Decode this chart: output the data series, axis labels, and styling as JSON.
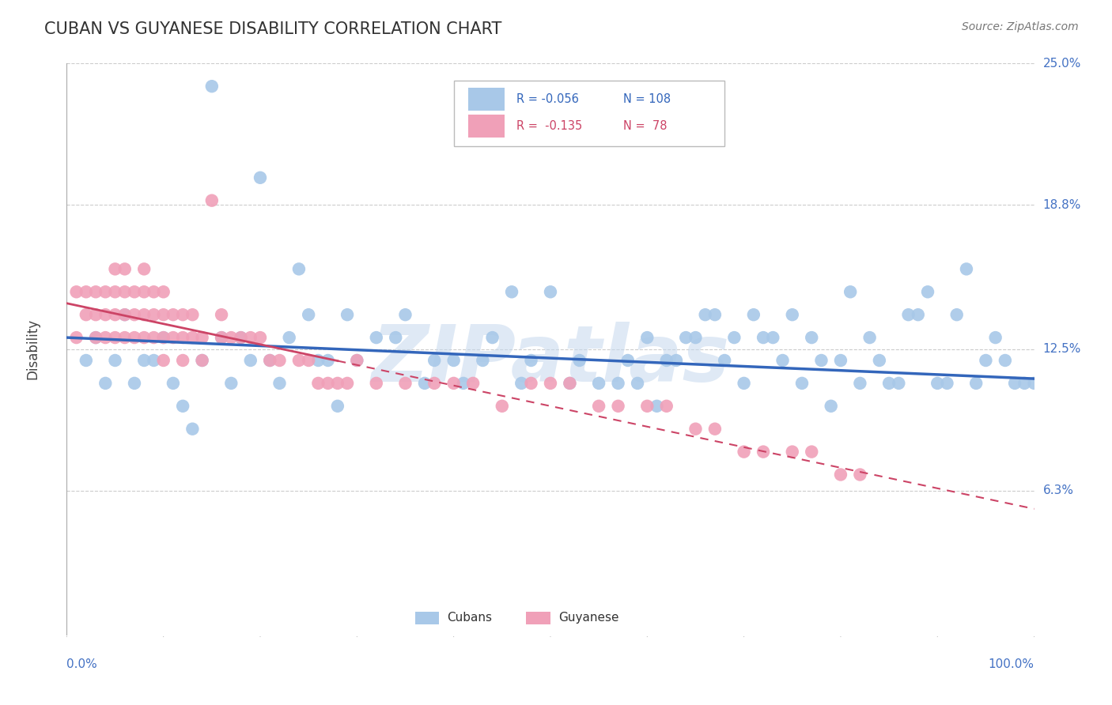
{
  "title": "CUBAN VS GUYANESE DISABILITY CORRELATION CHART",
  "source": "Source: ZipAtlas.com",
  "ylabel": "Disability",
  "watermark": "ZIPatlas",
  "legend_r_cuban": "-0.056",
  "legend_n_cuban": "108",
  "legend_r_guyanese": "-0.135",
  "legend_n_guyanese": "78",
  "cuban_color": "#A8C8E8",
  "guyanese_color": "#F0A0B8",
  "trend_cuban_color": "#3366BB",
  "trend_guyanese_color": "#CC4466",
  "background_color": "#FFFFFF",
  "xlim": [
    0,
    100
  ],
  "ylim": [
    0,
    25
  ],
  "ytick_vals": [
    6.3,
    12.5,
    18.8,
    25.0
  ],
  "ytick_labels": [
    "6.3%",
    "12.5%",
    "18.8%",
    "25.0%"
  ],
  "cuban_x": [
    2,
    3,
    4,
    5,
    6,
    7,
    8,
    9,
    10,
    11,
    12,
    13,
    14,
    15,
    16,
    17,
    18,
    19,
    20,
    21,
    22,
    23,
    24,
    25,
    26,
    27,
    28,
    29,
    30,
    32,
    34,
    35,
    37,
    38,
    40,
    41,
    43,
    44,
    46,
    47,
    48,
    50,
    52,
    53,
    55,
    57,
    58,
    59,
    60,
    61,
    62,
    63,
    64,
    65,
    66,
    67,
    68,
    69,
    70,
    71,
    72,
    73,
    74,
    75,
    76,
    77,
    78,
    79,
    80,
    81,
    82,
    83,
    84,
    85,
    86,
    87,
    88,
    89,
    90,
    91,
    92,
    93,
    94,
    95,
    96,
    97,
    98,
    99,
    100
  ],
  "cuban_y": [
    12,
    13,
    11,
    12,
    14,
    11,
    12,
    12,
    13,
    11,
    10,
    9,
    12,
    24,
    13,
    11,
    13,
    12,
    20,
    12,
    11,
    13,
    16,
    14,
    12,
    12,
    10,
    14,
    12,
    13,
    13,
    14,
    11,
    12,
    12,
    11,
    12,
    13,
    15,
    11,
    12,
    15,
    11,
    12,
    11,
    11,
    12,
    11,
    13,
    10,
    12,
    12,
    13,
    13,
    14,
    14,
    12,
    13,
    11,
    14,
    13,
    13,
    12,
    14,
    11,
    13,
    12,
    10,
    12,
    15,
    11,
    13,
    12,
    11,
    11,
    14,
    14,
    15,
    11,
    11,
    14,
    16,
    11,
    12,
    13,
    12,
    11,
    11,
    11
  ],
  "guyanese_x": [
    1,
    1,
    2,
    2,
    3,
    3,
    3,
    4,
    4,
    4,
    5,
    5,
    5,
    5,
    6,
    6,
    6,
    6,
    7,
    7,
    7,
    8,
    8,
    8,
    8,
    9,
    9,
    9,
    10,
    10,
    10,
    10,
    11,
    11,
    12,
    12,
    12,
    13,
    13,
    14,
    14,
    15,
    16,
    16,
    17,
    18,
    19,
    20,
    21,
    22,
    24,
    25,
    26,
    27,
    28,
    29,
    30,
    32,
    35,
    38,
    40,
    42,
    45,
    48,
    50,
    52,
    55,
    57,
    60,
    62,
    65,
    67,
    70,
    72,
    75,
    77,
    80,
    82
  ],
  "guyanese_y": [
    13,
    15,
    14,
    15,
    13,
    14,
    15,
    13,
    14,
    15,
    13,
    14,
    15,
    16,
    13,
    14,
    15,
    16,
    13,
    14,
    15,
    13,
    14,
    15,
    16,
    13,
    14,
    15,
    12,
    13,
    14,
    15,
    13,
    14,
    12,
    13,
    14,
    13,
    14,
    12,
    13,
    19,
    13,
    14,
    13,
    13,
    13,
    13,
    12,
    12,
    12,
    12,
    11,
    11,
    11,
    11,
    12,
    11,
    11,
    11,
    11,
    11,
    10,
    11,
    11,
    11,
    10,
    10,
    10,
    10,
    9,
    9,
    8,
    8,
    8,
    8,
    7,
    7
  ]
}
